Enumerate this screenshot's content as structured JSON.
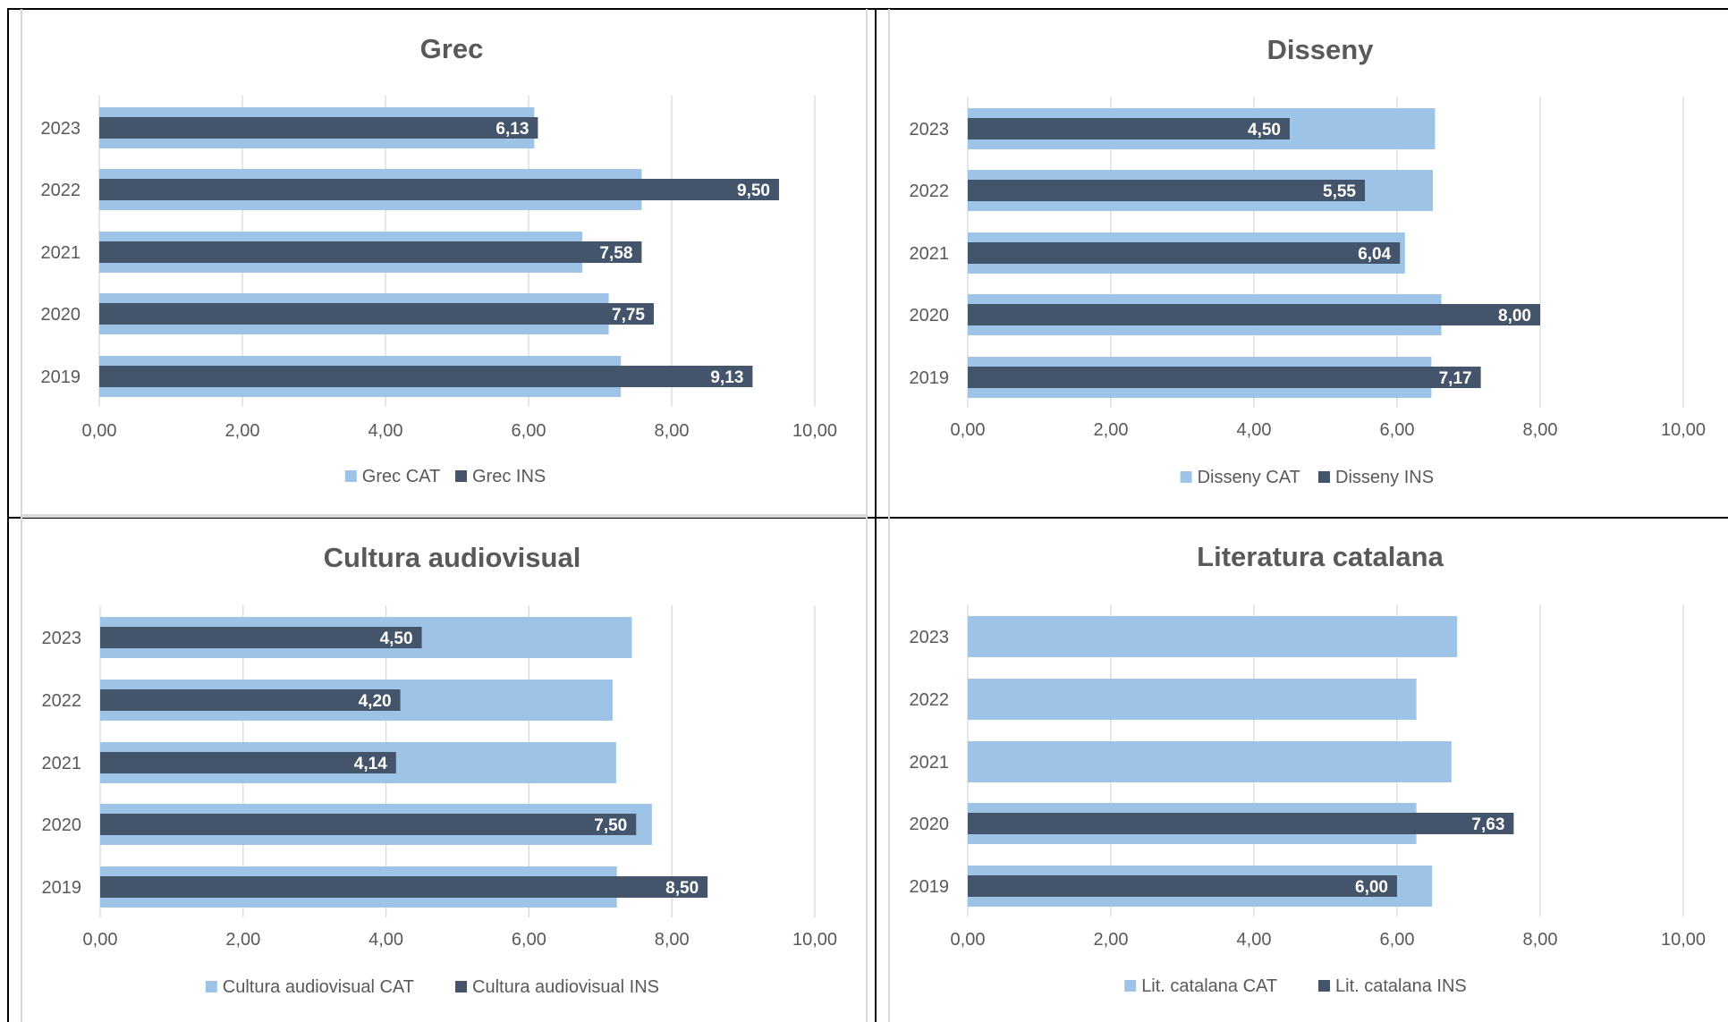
{
  "colors": {
    "cat": "#9dc3e6",
    "ins": "#44546a",
    "grid": "#d9d9d9",
    "text": "#595959",
    "title": "#595959",
    "value_label": "#ffffff",
    "frame": "#000000",
    "divider": "#d9d9d9"
  },
  "chart_data": [
    {
      "type": "bar",
      "orientation": "horizontal",
      "title": "Grec",
      "categories": [
        "2023",
        "2022",
        "2021",
        "2020",
        "2019"
      ],
      "series": [
        {
          "name": "Grec CAT",
          "values": [
            6.08,
            7.58,
            6.75,
            7.12,
            7.29
          ]
        },
        {
          "name": "Grec INS",
          "values": [
            6.13,
            9.5,
            7.58,
            7.75,
            9.13
          ],
          "labels": [
            "6,13",
            "9,50",
            "7,58",
            "7,75",
            "9,13"
          ]
        }
      ],
      "xlim": [
        0,
        10
      ],
      "xticks": [
        "0,00",
        "2,00",
        "4,00",
        "6,00",
        "8,00",
        "10,00"
      ],
      "grid": true,
      "legend": "bottom"
    },
    {
      "type": "bar",
      "orientation": "horizontal",
      "title": "Disseny",
      "categories": [
        "2023",
        "2022",
        "2021",
        "2020",
        "2019"
      ],
      "series": [
        {
          "name": "Disseny CAT",
          "values": [
            6.53,
            6.5,
            6.11,
            6.62,
            6.48
          ]
        },
        {
          "name": "Disseny INS",
          "values": [
            4.5,
            5.55,
            6.04,
            8.0,
            7.17
          ],
          "labels": [
            "4,50",
            "5,55",
            "6,04",
            "8,00",
            "7,17"
          ]
        }
      ],
      "xlim": [
        0,
        10
      ],
      "xticks": [
        "0,00",
        "2,00",
        "4,00",
        "6,00",
        "8,00",
        "10,00"
      ],
      "grid": true,
      "legend": "bottom"
    },
    {
      "type": "bar",
      "orientation": "horizontal",
      "title": "Cultura audiovisual",
      "categories": [
        "2023",
        "2022",
        "2021",
        "2020",
        "2019"
      ],
      "series": [
        {
          "name": "Cultura audiovisual CAT",
          "values": [
            7.44,
            7.17,
            7.22,
            7.72,
            7.23
          ]
        },
        {
          "name": "Cultura audiovisual INS",
          "values": [
            4.5,
            4.2,
            4.14,
            7.5,
            8.5
          ],
          "labels": [
            "4,50",
            "4,20",
            "4,14",
            "7,50",
            "8,50"
          ]
        }
      ],
      "xlim": [
        0,
        10
      ],
      "xticks": [
        "0,00",
        "2,00",
        "4,00",
        "6,00",
        "8,00",
        "10,00"
      ],
      "grid": true,
      "legend": "bottom"
    },
    {
      "type": "bar",
      "orientation": "horizontal",
      "title": "Literatura catalana",
      "categories": [
        "2023",
        "2022",
        "2021",
        "2020",
        "2019"
      ],
      "series": [
        {
          "name": "Lit. catalana CAT",
          "values": [
            6.84,
            6.27,
            6.76,
            6.27,
            6.49
          ]
        },
        {
          "name": "Lit. catalana INS",
          "values": [
            null,
            null,
            null,
            7.63,
            6.0
          ],
          "labels": [
            "",
            "",
            "",
            "7,63",
            "6,00"
          ]
        }
      ],
      "xlim": [
        0,
        10
      ],
      "xticks": [
        "0,00",
        "2,00",
        "4,00",
        "6,00",
        "8,00",
        "10,00"
      ],
      "grid": true,
      "legend": "bottom"
    }
  ]
}
